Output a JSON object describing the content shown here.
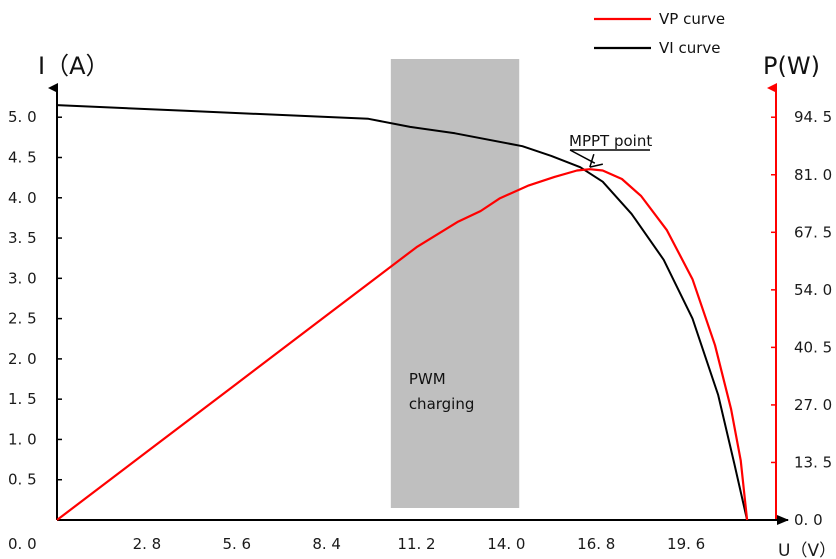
{
  "chart_data": {
    "type": "line",
    "title": "",
    "xlabel": "U（V）",
    "ylabel_left": "I（A）",
    "ylabel_right": "P(W)",
    "xlim": [
      0,
      22.4
    ],
    "ylim_left": [
      0,
      5.4
    ],
    "ylim_right": [
      0,
      102.06
    ],
    "x_ticks": [
      "2. 8",
      "5. 6",
      "8. 4",
      "11. 2",
      "14. 0",
      "16. 8",
      "19. 6"
    ],
    "origin_label": "0. 0",
    "left_ticks": [
      {
        "v": 0.5,
        "label": "0. 5"
      },
      {
        "v": 1.0,
        "label": "1. 0"
      },
      {
        "v": 1.5,
        "label": "1. 5"
      },
      {
        "v": 2.0,
        "label": "2. 0"
      },
      {
        "v": 2.5,
        "label": "2. 5"
      },
      {
        "v": 3.0,
        "label": "3. 0"
      },
      {
        "v": 3.5,
        "label": "3. 5"
      },
      {
        "v": 4.0,
        "label": "4. 0"
      },
      {
        "v": 4.5,
        "label": "4. 5"
      },
      {
        "v": 5.0,
        "label": "5. 0"
      }
    ],
    "right_ticks": [
      {
        "v": 0.0,
        "label": "0. 0"
      },
      {
        "v": 13.5,
        "label": "13. 5"
      },
      {
        "v": 27.0,
        "label": "27. 0"
      },
      {
        "v": 40.5,
        "label": "40. 5"
      },
      {
        "v": 54.0,
        "label": "54. 0"
      },
      {
        "v": 67.5,
        "label": "67. 5"
      },
      {
        "v": 81.0,
        "label": "81. 0"
      },
      {
        "v": 94.5,
        "label": "94. 5"
      }
    ],
    "series": [
      {
        "name": "VI curve",
        "axis": "left",
        "color": "#000000",
        "points": [
          [
            0,
            5.15
          ],
          [
            4.0,
            5.08
          ],
          [
            8.0,
            5.01
          ],
          [
            9.7,
            4.98
          ],
          [
            11.0,
            4.88
          ],
          [
            12.4,
            4.8
          ],
          [
            14.5,
            4.64
          ],
          [
            15.4,
            4.52
          ],
          [
            16.3,
            4.38
          ],
          [
            17.0,
            4.2
          ],
          [
            17.9,
            3.8
          ],
          [
            18.9,
            3.23
          ],
          [
            19.8,
            2.5
          ],
          [
            20.6,
            1.55
          ],
          [
            21.1,
            0.7
          ],
          [
            21.5,
            0.0
          ]
        ]
      },
      {
        "name": "VP curve",
        "axis": "right",
        "color": "#ff0000",
        "points": [
          [
            0,
            0.0
          ],
          [
            2.8,
            16.0
          ],
          [
            5.6,
            32.0
          ],
          [
            8.4,
            48.0
          ],
          [
            11.2,
            64.0
          ],
          [
            12.5,
            70.0
          ],
          [
            13.2,
            72.5
          ],
          [
            13.8,
            75.5
          ],
          [
            14.7,
            78.5
          ],
          [
            15.5,
            80.5
          ],
          [
            16.2,
            82.0
          ],
          [
            16.6,
            82.3
          ],
          [
            17.0,
            82.0
          ],
          [
            17.6,
            80.0
          ],
          [
            18.2,
            76.0
          ],
          [
            19.0,
            68.0
          ],
          [
            19.8,
            56.5
          ],
          [
            20.5,
            41.0
          ],
          [
            21.0,
            26.0
          ],
          [
            21.3,
            14.0
          ],
          [
            21.5,
            0.0
          ]
        ]
      }
    ],
    "shaded_band": {
      "x_start": 10.4,
      "x_end": 14.4,
      "color": "#bfbfbf",
      "label": [
        "PWM",
        "charging"
      ]
    },
    "annotation": {
      "text": "MPPT point",
      "x": 16.6,
      "y_left": 4.38
    },
    "legend": {
      "position": "top-right"
    }
  }
}
